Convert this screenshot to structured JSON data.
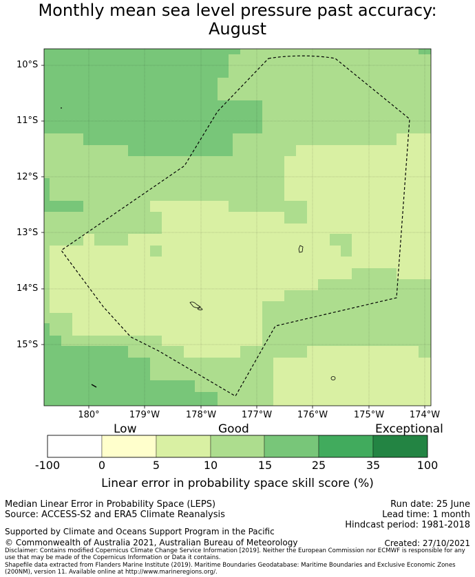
{
  "title_line1": "Monthly mean sea level pressure past accuracy:",
  "title_line2": "August",
  "map": {
    "lat_labels": [
      "10°S",
      "11°S",
      "12°S",
      "13°S",
      "14°S",
      "15°S"
    ],
    "lon_labels": [
      "180°",
      "179°W",
      "178°W",
      "177°W",
      "176°W",
      "175°W",
      "174°W"
    ],
    "category_colors": {
      "dark": "#78c679",
      "mid": "#addd8e",
      "light": "#d9f0a3"
    }
  },
  "colorbar": {
    "category_labels": [
      "Low",
      "Good",
      "Exceptional"
    ],
    "ticks": [
      "-100",
      "0",
      "5",
      "10",
      "15",
      "25",
      "35",
      "100"
    ],
    "colors": [
      "#ffffff",
      "#ffffcc",
      "#d9f0a3",
      "#addd8e",
      "#78c679",
      "#41ab5d",
      "#238443"
    ],
    "label": "Linear error in probability space skill score (%)"
  },
  "info": {
    "line1": "Median Linear Error in Probability Space (LEPS)",
    "line2": "Source: ACCESS-S2 and ERA5 Climate Reanalysis",
    "run_date": "Run date: 25 June",
    "lead_time": "Lead time: 1 month",
    "hindcast": "Hindcast period: 1981-2018",
    "supported": "Supported by Climate and Oceans Support Program in the Pacific",
    "copyright": "© Commonwealth of Australia 2021, Australian Bureau of Meteorology",
    "created": "Created: 27/10/2021",
    "disclaimer": "Disclaimer: Contains modified Copernicus Climate Change Service Information [2019]. Neither the European Commission nor ECMWF is responsible for any use that may be made of the Copernicus Information or Data it contains.",
    "shapefile": "Shapefile data extracted from Flanders Marine Institute (2019). Maritime Boundaries Geodatabase: Maritime Boundaries and Exclusive Economic Zones (200NM), version 11. Available online at http://www.marineregions.org/."
  }
}
